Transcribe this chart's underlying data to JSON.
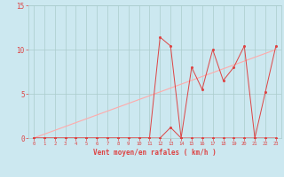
{
  "bg_color": "#cce8f0",
  "grid_color": "#aacccc",
  "line1_x": [
    0,
    1,
    2,
    3,
    4,
    5,
    6,
    7,
    8,
    9,
    10,
    11,
    12,
    13,
    14,
    15,
    16,
    17,
    18,
    19,
    20,
    21,
    22,
    23
  ],
  "line1_y": [
    0,
    0,
    0,
    0,
    0,
    0,
    0,
    0,
    0,
    0,
    0,
    0,
    11.4,
    10.4,
    0,
    8.0,
    5.5,
    10.0,
    6.5,
    8.0,
    10.4,
    0,
    5.2,
    10.4
  ],
  "line2_x": [
    0,
    1,
    2,
    3,
    4,
    5,
    6,
    7,
    8,
    9,
    10,
    11,
    12,
    13,
    14,
    15,
    16,
    17,
    18,
    19,
    20,
    21,
    22,
    23
  ],
  "line2_y": [
    0,
    0,
    0,
    0,
    0,
    0,
    0,
    0,
    0,
    0,
    0,
    0,
    0,
    1.2,
    0,
    0,
    0,
    0,
    0,
    0,
    0,
    0,
    0,
    0
  ],
  "ref_line_x": [
    0,
    23
  ],
  "ref_line_y": [
    0,
    10.0
  ],
  "line_color": "#dd4444",
  "ref_color": "#ffaaaa",
  "xlabel": "Vent moyen/en rafales ( km/h )",
  "xlim": [
    -0.5,
    23.5
  ],
  "ylim": [
    0,
    15
  ],
  "yticks": [
    0,
    5,
    10,
    15
  ],
  "xticks": [
    0,
    1,
    2,
    3,
    4,
    5,
    6,
    7,
    8,
    9,
    10,
    11,
    12,
    13,
    14,
    15,
    16,
    17,
    18,
    19,
    20,
    21,
    22,
    23
  ]
}
